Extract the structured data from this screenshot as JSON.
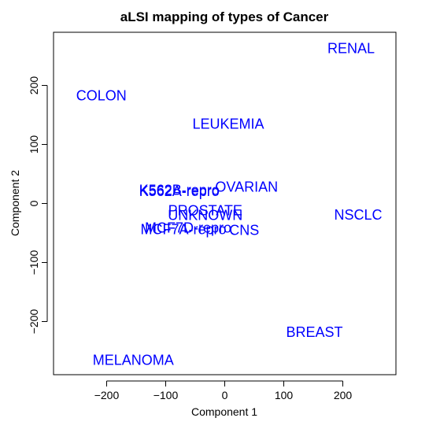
{
  "chart_data": {
    "type": "scatter",
    "title": "aLSI mapping of types of Cancer",
    "xlabel": "Component 1",
    "ylabel": "Component 2",
    "xlim": [
      -290,
      290
    ],
    "ylim": [
      -290,
      290
    ],
    "x_ticks": [
      -200,
      -100,
      0,
      100,
      200
    ],
    "y_ticks": [
      -200,
      -100,
      0,
      100,
      200
    ],
    "x_tick_labels": [
      "−200",
      "−100",
      "0",
      "100",
      "200"
    ],
    "y_tick_labels": [
      "−200",
      "−100",
      "0",
      "100",
      "200"
    ],
    "grid": false,
    "label_color": "#0000ff",
    "points": [
      {
        "label": "RENAL",
        "x": 214,
        "y": 263
      },
      {
        "label": "COLON",
        "x": -209,
        "y": 183
      },
      {
        "label": "LEUKEMIA",
        "x": 6,
        "y": 135
      },
      {
        "label": "OVARIAN",
        "x": 37,
        "y": 28
      },
      {
        "label": "K562B-repro",
        "x": -77,
        "y": 23
      },
      {
        "label": "K562A-repro",
        "x": -77,
        "y": 21
      },
      {
        "label": "NSCLC",
        "x": 226,
        "y": -19
      },
      {
        "label": "PROSTATE",
        "x": -33,
        "y": -12
      },
      {
        "label": "UNKNOWN",
        "x": -33,
        "y": -20
      },
      {
        "label": "MCF7D-repro",
        "x": -62,
        "y": -41
      },
      {
        "label": "MCF7A-repro",
        "x": -70,
        "y": -44
      },
      {
        "label": "CNS",
        "x": 33,
        "y": -45
      },
      {
        "label": "BREAST",
        "x": 152,
        "y": -218
      },
      {
        "label": "MELANOMA",
        "x": -155,
        "y": -265
      }
    ]
  }
}
